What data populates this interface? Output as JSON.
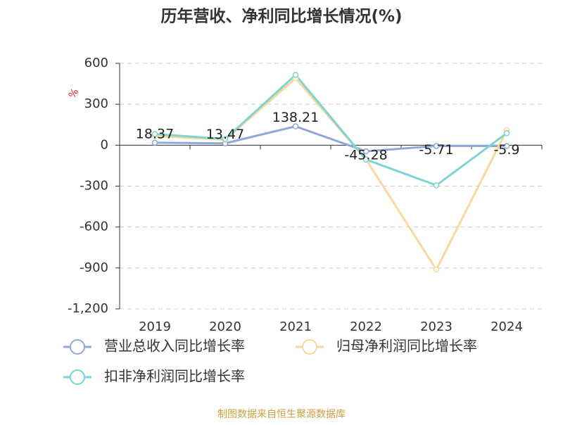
{
  "chart_data": {
    "type": "line",
    "title": "历年营收、净利同比增长情况(%)",
    "y_label": "%",
    "source": "制图数据来自恒生聚源数据库",
    "categories": [
      "2019",
      "2020",
      "2021",
      "2022",
      "2023",
      "2024"
    ],
    "series": [
      {
        "name": "营业总收入同比增长率",
        "color": "#8fa8d6",
        "values": [
          18.37,
          13.47,
          138.21,
          -45.28,
          -5.71,
          -5.9
        ],
        "show_labels": true
      },
      {
        "name": "归母净利润同比增长率",
        "color": "#f8d89c",
        "values": [
          67,
          40,
          490,
          -103,
          -912,
          108
        ]
      },
      {
        "name": "扣非净利润同比增长率",
        "color": "#7fd3d3",
        "values": [
          82,
          45,
          515,
          -105,
          -294,
          88
        ]
      }
    ],
    "ylim": [
      -1200,
      600
    ],
    "yticks": [
      {
        "value": -1200,
        "label": "-1,200"
      },
      -900,
      -600,
      -300,
      0,
      300,
      600
    ],
    "grid": true
  }
}
